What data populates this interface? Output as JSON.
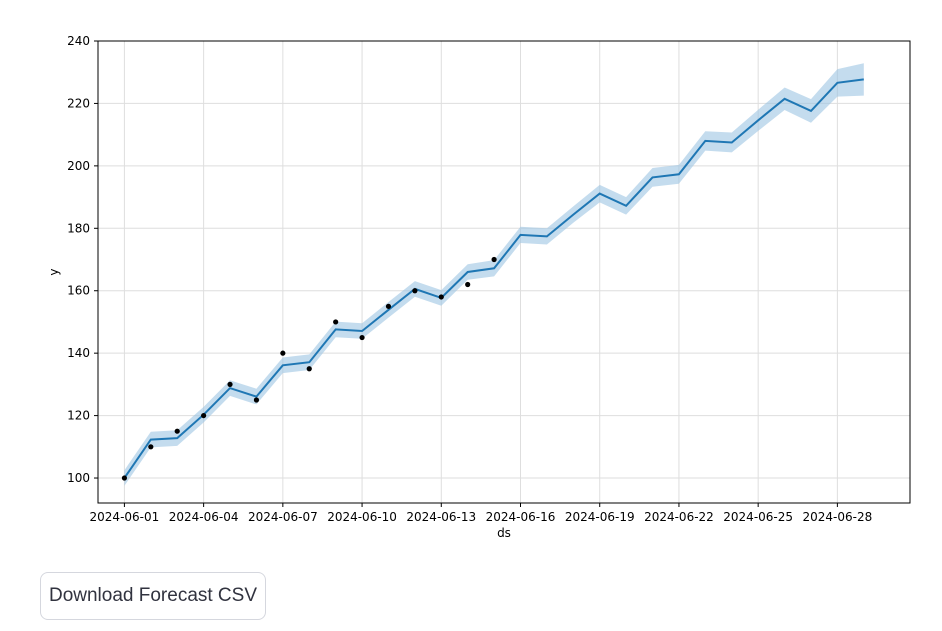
{
  "chart_data": {
    "type": "line",
    "xlabel": "ds",
    "ylabel": "y",
    "ylim": [
      92,
      240
    ],
    "xlim": [
      "2024-05-31T00:00",
      "2024-06-30T18:00"
    ],
    "y_ticks": [
      100,
      120,
      140,
      160,
      180,
      200,
      220,
      240
    ],
    "x_ticks": [
      "2024-06-01",
      "2024-06-04",
      "2024-06-07",
      "2024-06-10",
      "2024-06-13",
      "2024-06-16",
      "2024-06-19",
      "2024-06-22",
      "2024-06-25",
      "2024-06-28"
    ],
    "grid": true,
    "colors": {
      "line": "#1f77b4",
      "band": "#9cc5e3",
      "points": "#000000",
      "grid": "#dedede"
    },
    "series": [
      {
        "kind": "forecast",
        "x": [
          "2024-06-01",
          "2024-06-02",
          "2024-06-03",
          "2024-06-04",
          "2024-06-05",
          "2024-06-06",
          "2024-06-07",
          "2024-06-08",
          "2024-06-09",
          "2024-06-10",
          "2024-06-11",
          "2024-06-12",
          "2024-06-13",
          "2024-06-14",
          "2024-06-15",
          "2024-06-16",
          "2024-06-17",
          "2024-06-18",
          "2024-06-19",
          "2024-06-20",
          "2024-06-21",
          "2024-06-22",
          "2024-06-23",
          "2024-06-24",
          "2024-06-25",
          "2024-06-26",
          "2024-06-27",
          "2024-06-28",
          "2024-06-29"
        ],
        "yhat": [
          100.0,
          112.3,
          112.8,
          120.3,
          128.8,
          126.1,
          136.1,
          137.1,
          147.6,
          147.1,
          153.9,
          160.6,
          157.7,
          166.0,
          167.2,
          177.9,
          177.4,
          184.4,
          191.1,
          187.2,
          196.3,
          197.3,
          208.0,
          207.5,
          214.6,
          221.5,
          217.6,
          226.6,
          227.7
        ],
        "yhat_lower": [
          97.5,
          109.8,
          110.3,
          117.8,
          126.3,
          123.6,
          133.6,
          134.6,
          145.1,
          144.6,
          151.4,
          158.1,
          155.2,
          163.5,
          164.6,
          175.3,
          174.8,
          181.8,
          188.3,
          184.4,
          193.3,
          194.3,
          204.9,
          204.3,
          211.2,
          217.9,
          213.8,
          222.2,
          222.5
        ],
        "yhat_upper": [
          102.5,
          114.8,
          115.3,
          122.8,
          131.3,
          128.6,
          138.6,
          139.6,
          150.1,
          149.6,
          156.4,
          163.1,
          160.2,
          168.5,
          169.8,
          180.5,
          180.0,
          187.0,
          193.9,
          190.0,
          199.3,
          200.3,
          211.1,
          210.7,
          218.0,
          225.1,
          221.4,
          231.0,
          232.9
        ]
      },
      {
        "kind": "observed",
        "x": [
          "2024-06-01",
          "2024-06-02",
          "2024-06-03",
          "2024-06-04",
          "2024-06-05",
          "2024-06-06",
          "2024-06-07",
          "2024-06-08",
          "2024-06-09",
          "2024-06-10",
          "2024-06-11",
          "2024-06-12",
          "2024-06-13",
          "2024-06-14",
          "2024-06-15"
        ],
        "y": [
          100,
          110,
          115,
          120,
          130,
          125,
          140,
          135,
          150,
          145,
          155,
          160,
          158,
          162,
          170
        ]
      }
    ]
  },
  "actions": {
    "download_label": "Download Forecast CSV"
  }
}
